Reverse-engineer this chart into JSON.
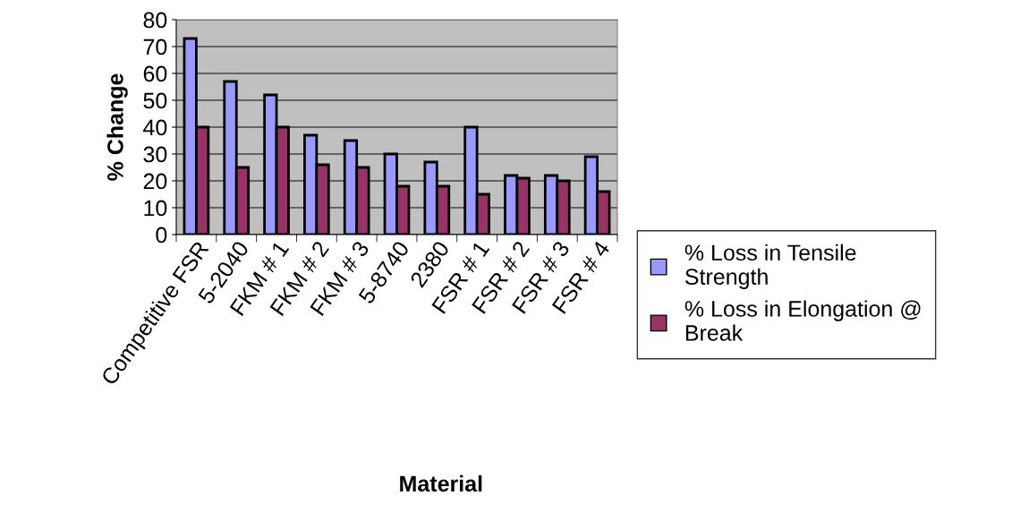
{
  "chart_data": {
    "type": "bar",
    "xlabel": "Material",
    "ylabel": "% Change",
    "categories": [
      "Competitive FSR",
      "5-2040",
      "FKM # 1",
      "FKM # 2",
      "FKM # 3",
      "5-8740",
      "2380",
      "FSR # 1",
      "FSR # 2",
      "FSR # 3",
      "FSR # 4"
    ],
    "series": [
      {
        "name": "% Loss in Tensile Strength",
        "color": "#9999ff",
        "values": [
          73,
          57,
          52,
          37,
          35,
          30,
          27,
          40,
          22,
          22,
          29
        ]
      },
      {
        "name": "% Loss in Elongation @ Break",
        "color": "#993366",
        "values": [
          40,
          25,
          40,
          26,
          25,
          18,
          18,
          15,
          21,
          20,
          16
        ]
      }
    ],
    "ylim": [
      0,
      80
    ],
    "yticks": [
      0,
      10,
      20,
      30,
      40,
      50,
      60,
      70,
      80
    ],
    "grid": "y",
    "legend": "right"
  }
}
